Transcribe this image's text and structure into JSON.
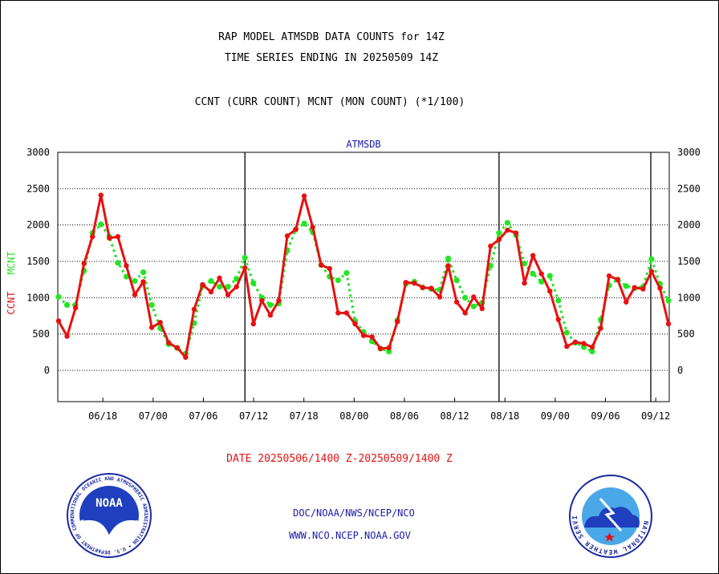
{
  "header": {
    "title_line1": "RAP MODEL ATMSDB DATA COUNTS for 14Z",
    "title_line2": "TIME SERIES ENDING IN 20250509 14Z",
    "subtitle": "CCNT (CURR COUNT) MCNT (MON COUNT) (*1/100)"
  },
  "footer": {
    "date_range": "DATE 20250506/1400 Z-20250509/1400 Z",
    "org_line": "DOC/NOAA/NWS/NCEP/NCO",
    "url_line": "WWW.NCO.NCEP.NOAA.GOV"
  },
  "logos": {
    "noaa_text": "NOAA",
    "noaa_ring_text": "NATIONAL OCEANIC AND ATMOSPHERIC ADMINISTRATION • U.S. DEPARTMENT OF COMMERCE •",
    "nws_ring_text": "NATIONAL WEATHER SERVICE"
  },
  "colors": {
    "ccnt": "#e81010",
    "mcnt": "#22e622",
    "label_blue": "#1a1aa6",
    "date_red": "#e81010"
  },
  "chart_data": {
    "type": "line",
    "title": "ATMSDB",
    "ylabel_left_1": "CCNT",
    "ylabel_left_2": "MCNT",
    "ylim": [
      -430,
      3000
    ],
    "yticks": [
      0,
      500,
      1000,
      1500,
      2000,
      2500,
      3000
    ],
    "grid": true,
    "xtick_labels": [
      "06/18",
      "07/00",
      "07/06",
      "07/12",
      "07/18",
      "08/00",
      "08/06",
      "08/12",
      "08/18",
      "09/00",
      "09/06",
      "09/12"
    ],
    "day_separators_after_index": [
      27,
      57,
      87
    ],
    "series": [
      {
        "name": "CCNT",
        "style": "solid",
        "values": [
          680,
          470,
          860,
          1470,
          1840,
          2410,
          1820,
          1840,
          1440,
          1040,
          1220,
          590,
          660,
          380,
          310,
          180,
          840,
          1180,
          1080,
          1270,
          1040,
          1150,
          1410,
          640,
          960,
          760,
          960,
          1850,
          1940,
          2400,
          1970,
          1450,
          1400,
          790,
          790,
          640,
          480,
          460,
          300,
          310,
          670,
          1210,
          1200,
          1140,
          1130,
          1010,
          1440,
          940,
          790,
          1010,
          850,
          1710,
          1800,
          1930,
          1890,
          1200,
          1580,
          1330,
          1090,
          700,
          330,
          390,
          370,
          320,
          580,
          1300,
          1250,
          940,
          1140,
          1120,
          1360,
          1130,
          640
        ]
      },
      {
        "name": "MCNT",
        "style": "dotted",
        "values": [
          1010,
          900,
          900,
          1370,
          1890,
          2010,
          1840,
          1480,
          1290,
          1230,
          1350,
          900,
          580,
          360,
          310,
          230,
          650,
          1160,
          1230,
          1150,
          1150,
          1260,
          1550,
          1200,
          1000,
          900,
          920,
          1650,
          1940,
          2020,
          1900,
          1450,
          1290,
          1240,
          1340,
          680,
          530,
          400,
          300,
          260,
          690,
          1190,
          1220,
          1140,
          1120,
          1110,
          1540,
          1240,
          1000,
          880,
          930,
          1440,
          1890,
          2030,
          1860,
          1470,
          1330,
          1220,
          1300,
          960,
          520,
          380,
          320,
          260,
          700,
          1170,
          1250,
          1160,
          1130,
          1150,
          1530,
          1190,
          960
        ]
      }
    ]
  }
}
